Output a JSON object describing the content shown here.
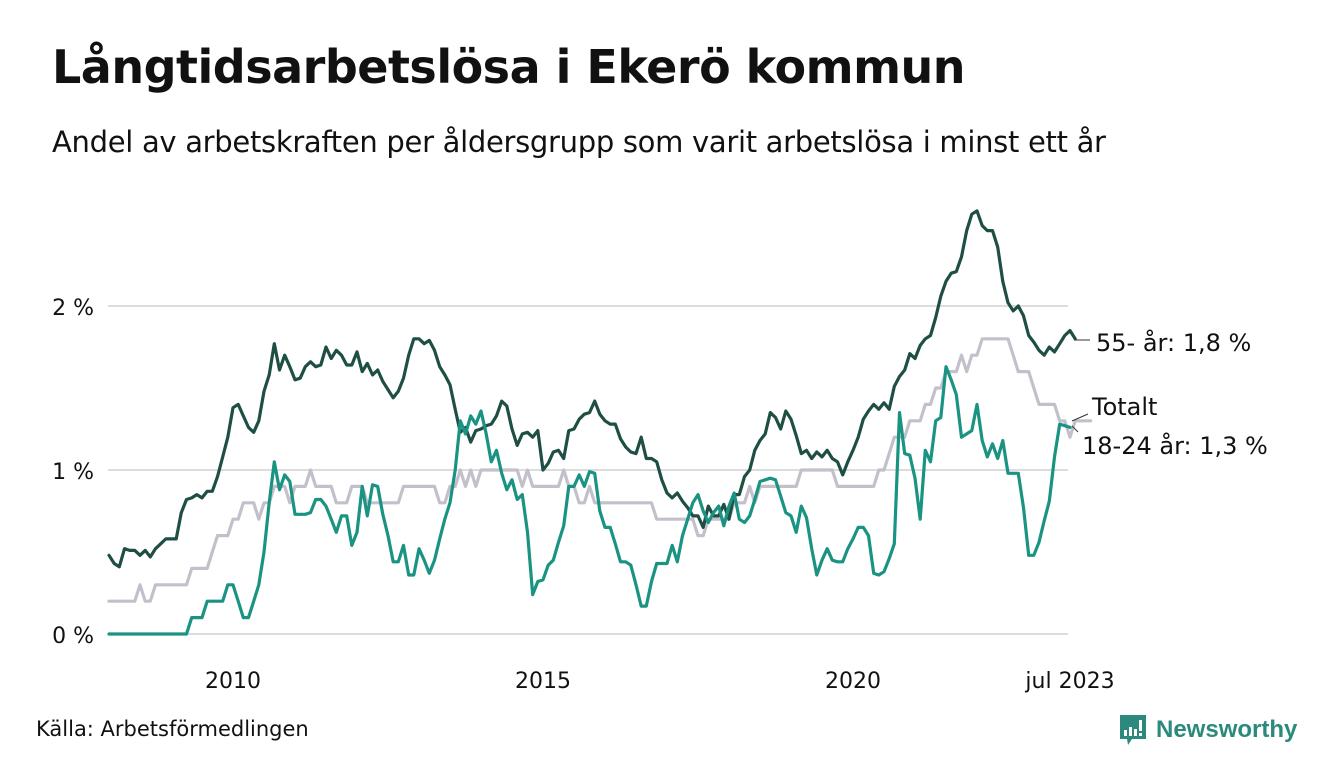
{
  "title": "Långtidsarbetslösa i Ekerö kommun",
  "subtitle": "Andel av arbetskraften per åldersgrupp som varit arbetslösa i minst ett år",
  "source": "Källa: Arbetsförmedlingen",
  "logo": {
    "text": "Newsworthy",
    "icon": "newsworthy-chart-bubble-icon",
    "color": "#2b8a7d"
  },
  "chart_data": {
    "type": "line",
    "title": "Långtidsarbetslösa i Ekerö kommun",
    "subtitle": "Andel av arbetskraften per åldersgrupp som varit arbetslösa i minst ett år",
    "xlabel": "",
    "ylabel": "",
    "x_start": "2008-01",
    "x_end": "2023-07",
    "x_frequency": "monthly",
    "x_ticks": [
      {
        "year": 2010,
        "label": "2010"
      },
      {
        "year": 2015,
        "label": "2015"
      },
      {
        "year": 2020,
        "label": "2020"
      },
      {
        "year": 2023.5,
        "label": "jul 2023"
      }
    ],
    "y_ticks": [
      {
        "value": 0,
        "label": "0 %"
      },
      {
        "value": 1,
        "label": "1 %"
      },
      {
        "value": 2,
        "label": "2 %"
      }
    ],
    "ylim": [
      0,
      2.6
    ],
    "grid": true,
    "series": [
      {
        "name": "Totalt",
        "label": "Totalt",
        "color": "#c3c0cc",
        "last_value": 1.3,
        "values": [
          0.2,
          0.2,
          0.2,
          0.2,
          0.2,
          0.2,
          0.3,
          0.2,
          0.2,
          0.3,
          0.3,
          0.3,
          0.3,
          0.3,
          0.3,
          0.3,
          0.4,
          0.4,
          0.4,
          0.4,
          0.5,
          0.6,
          0.6,
          0.6,
          0.7,
          0.7,
          0.8,
          0.8,
          0.8,
          0.7,
          0.8,
          0.8,
          0.9,
          0.9,
          0.9,
          0.8,
          0.9,
          0.9,
          0.9,
          1.0,
          0.9,
          0.9,
          0.9,
          0.9,
          0.8,
          0.8,
          0.8,
          0.9,
          0.9,
          0.9,
          0.8,
          0.8,
          0.8,
          0.8,
          0.8,
          0.8,
          0.8,
          0.9,
          0.9,
          0.9,
          0.9,
          0.9,
          0.9,
          0.9,
          0.8,
          0.8,
          0.9,
          0.9,
          1.0,
          0.9,
          1.0,
          0.9,
          1.0,
          1.0,
          1.0,
          1.0,
          1.0,
          1.0,
          1.0,
          1.0,
          0.9,
          1.0,
          0.9,
          0.9,
          0.9,
          0.9,
          0.9,
          0.9,
          1.0,
          0.9,
          0.9,
          0.8,
          0.8,
          0.9,
          0.8,
          0.8,
          0.8,
          0.8,
          0.8,
          0.8,
          0.8,
          0.8,
          0.8,
          0.8,
          0.8,
          0.8,
          0.7,
          0.7,
          0.7,
          0.7,
          0.7,
          0.7,
          0.7,
          0.7,
          0.6,
          0.6,
          0.7,
          0.7,
          0.7,
          0.7,
          0.7,
          0.8,
          0.8,
          0.8,
          0.9,
          0.8,
          0.9,
          0.9,
          0.9,
          0.9,
          0.9,
          0.9,
          0.9,
          0.9,
          1.0,
          1.0,
          1.0,
          1.0,
          1.0,
          1.0,
          1.0,
          0.9,
          0.9,
          0.9,
          0.9,
          0.9,
          0.9,
          0.9,
          0.9,
          1.0,
          1.0,
          1.1,
          1.2,
          1.2,
          1.2,
          1.3,
          1.3,
          1.3,
          1.4,
          1.4,
          1.5,
          1.5,
          1.6,
          1.6,
          1.6,
          1.7,
          1.6,
          1.7,
          1.7,
          1.8,
          1.8,
          1.8,
          1.8,
          1.8,
          1.8,
          1.7,
          1.6,
          1.6,
          1.6,
          1.5,
          1.4,
          1.4,
          1.4,
          1.4,
          1.3,
          1.3,
          1.2,
          1.3,
          1.3,
          1.3,
          1.3
        ]
      },
      {
        "name": "55- år",
        "label": "55- år: 1,8 %",
        "color": "#1f4e44",
        "last_value": 1.8,
        "values": [
          0.48,
          0.43,
          0.41,
          0.52,
          0.51,
          0.51,
          0.48,
          0.51,
          0.47,
          0.52,
          0.55,
          0.58,
          0.58,
          0.58,
          0.74,
          0.82,
          0.83,
          0.85,
          0.83,
          0.87,
          0.87,
          0.96,
          1.08,
          1.2,
          1.38,
          1.4,
          1.33,
          1.26,
          1.23,
          1.3,
          1.48,
          1.58,
          1.77,
          1.61,
          1.7,
          1.63,
          1.55,
          1.56,
          1.63,
          1.66,
          1.63,
          1.64,
          1.75,
          1.68,
          1.73,
          1.7,
          1.64,
          1.64,
          1.72,
          1.6,
          1.65,
          1.58,
          1.61,
          1.54,
          1.49,
          1.44,
          1.48,
          1.56,
          1.7,
          1.8,
          1.8,
          1.77,
          1.79,
          1.73,
          1.63,
          1.58,
          1.52,
          1.37,
          1.23,
          1.26,
          1.17,
          1.24,
          1.25,
          1.27,
          1.28,
          1.33,
          1.42,
          1.39,
          1.25,
          1.15,
          1.22,
          1.23,
          1.2,
          1.24,
          1.0,
          1.04,
          1.11,
          1.12,
          1.07,
          1.24,
          1.25,
          1.31,
          1.34,
          1.35,
          1.42,
          1.34,
          1.3,
          1.28,
          1.28,
          1.19,
          1.14,
          1.11,
          1.1,
          1.2,
          1.07,
          1.07,
          1.05,
          0.94,
          0.86,
          0.83,
          0.86,
          0.81,
          0.77,
          0.72,
          0.72,
          0.65,
          0.78,
          0.72,
          0.72,
          0.79,
          0.7,
          0.85,
          0.85,
          0.96,
          1.0,
          1.12,
          1.18,
          1.22,
          1.35,
          1.32,
          1.25,
          1.36,
          1.31,
          1.21,
          1.1,
          1.12,
          1.07,
          1.11,
          1.08,
          1.12,
          1.07,
          1.05,
          0.97,
          1.05,
          1.12,
          1.2,
          1.31,
          1.36,
          1.4,
          1.37,
          1.41,
          1.37,
          1.51,
          1.57,
          1.61,
          1.71,
          1.68,
          1.76,
          1.8,
          1.82,
          1.93,
          2.06,
          2.15,
          2.2,
          2.21,
          2.3,
          2.46,
          2.56,
          2.58,
          2.49,
          2.46,
          2.46,
          2.36,
          2.15,
          2.02,
          1.97,
          2.0,
          1.94,
          1.82,
          1.78,
          1.73,
          1.7,
          1.75,
          1.72,
          1.77,
          1.82,
          1.85,
          1.8
        ]
      },
      {
        "name": "18-24 år",
        "label": "18-24 år: 1,3 %",
        "color": "#1a9383",
        "last_value": 1.3,
        "values": [
          0.0,
          0.0,
          0.0,
          0.0,
          0.0,
          0.0,
          0.0,
          0.0,
          0.0,
          0.0,
          0.0,
          0.0,
          0.0,
          0.0,
          0.0,
          0.0,
          0.1,
          0.1,
          0.1,
          0.2,
          0.2,
          0.2,
          0.2,
          0.3,
          0.3,
          0.2,
          0.1,
          0.1,
          0.2,
          0.3,
          0.5,
          0.8,
          1.05,
          0.88,
          0.97,
          0.93,
          0.73,
          0.73,
          0.73,
          0.74,
          0.82,
          0.82,
          0.78,
          0.7,
          0.62,
          0.72,
          0.72,
          0.54,
          0.62,
          0.9,
          0.72,
          0.91,
          0.9,
          0.73,
          0.6,
          0.44,
          0.44,
          0.54,
          0.36,
          0.36,
          0.52,
          0.45,
          0.37,
          0.45,
          0.58,
          0.7,
          0.8,
          1.0,
          1.3,
          1.22,
          1.33,
          1.28,
          1.36,
          1.22,
          1.05,
          1.12,
          0.98,
          0.88,
          0.94,
          0.82,
          0.85,
          0.62,
          0.24,
          0.32,
          0.33,
          0.42,
          0.45,
          0.56,
          0.66,
          0.9,
          0.9,
          0.97,
          0.9,
          0.99,
          0.98,
          0.75,
          0.65,
          0.65,
          0.55,
          0.44,
          0.44,
          0.42,
          0.3,
          0.17,
          0.17,
          0.32,
          0.43,
          0.43,
          0.43,
          0.54,
          0.44,
          0.6,
          0.7,
          0.8,
          0.85,
          0.75,
          0.68,
          0.74,
          0.78,
          0.66,
          0.78,
          0.86,
          0.7,
          0.68,
          0.72,
          0.82,
          0.93,
          0.94,
          0.95,
          0.94,
          0.84,
          0.74,
          0.72,
          0.62,
          0.78,
          0.71,
          0.52,
          0.36,
          0.45,
          0.52,
          0.45,
          0.44,
          0.44,
          0.52,
          0.58,
          0.65,
          0.65,
          0.6,
          0.37,
          0.36,
          0.38,
          0.46,
          0.55,
          1.35,
          1.1,
          1.09,
          0.95,
          0.7,
          1.12,
          1.05,
          1.3,
          1.32,
          1.63,
          1.55,
          1.46,
          1.2,
          1.22,
          1.24,
          1.4,
          1.18,
          1.08,
          1.16,
          1.07,
          1.18,
          0.98,
          0.98,
          0.98,
          0.77,
          0.48,
          0.48,
          0.56,
          0.69,
          0.81,
          1.08,
          1.28,
          1.27,
          1.26
        ]
      }
    ]
  }
}
